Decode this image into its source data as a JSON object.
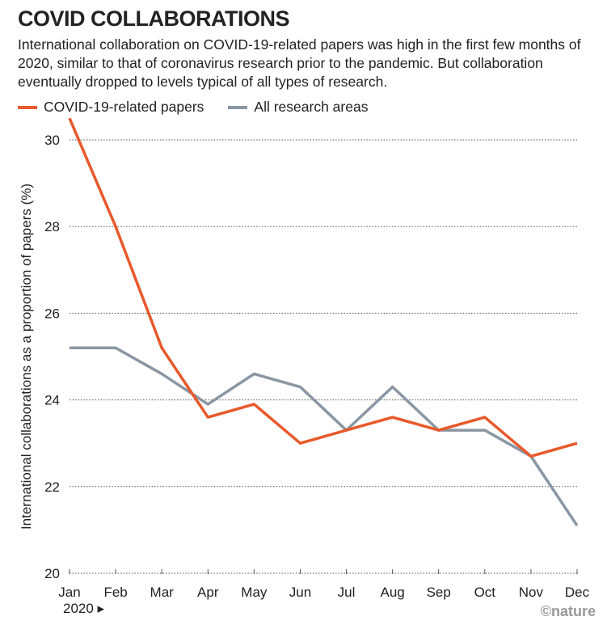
{
  "title": "COVID COLLABORATIONS",
  "subtitle": "International collaboration on COVID-19-related papers was high in the first few months of 2020, similar to that of coronavirus research prior to the pandemic. But collaboration eventually dropped to levels typical of all types of research.",
  "logo": "©nature",
  "colors": {
    "covid": "#e8592b",
    "all": "#8a96a3"
  },
  "chart_data": {
    "type": "line",
    "title": "COVID COLLABORATIONS",
    "ylabel": "International collaborations as a proportion of papers (%)",
    "xlabel": "",
    "year_label": "2020 ▸",
    "categories": [
      "Jan",
      "Feb",
      "Mar",
      "Apr",
      "May",
      "Jun",
      "Jul",
      "Aug",
      "Sep",
      "Oct",
      "Nov",
      "Dec"
    ],
    "yticks": [
      20,
      22,
      24,
      26,
      28,
      30
    ],
    "ylim": [
      20,
      30.6
    ],
    "grid": true,
    "legend": "top-left",
    "series": [
      {
        "name": "COVID-19-related papers",
        "color": "#e8592b",
        "values": [
          30.5,
          28.0,
          25.2,
          23.6,
          23.9,
          23.0,
          23.3,
          23.6,
          23.3,
          23.6,
          22.7,
          23.0
        ]
      },
      {
        "name": "All research areas",
        "color": "#8a96a3",
        "values": [
          25.2,
          25.2,
          24.6,
          23.9,
          24.6,
          24.3,
          23.3,
          24.3,
          23.3,
          23.3,
          22.7,
          21.1
        ]
      }
    ]
  }
}
